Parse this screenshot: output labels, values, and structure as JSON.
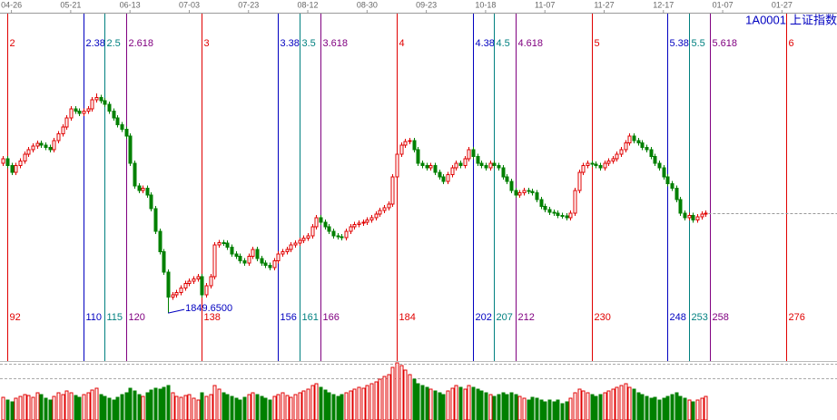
{
  "chart_data": {
    "type": "candlestick",
    "code": "1A0001",
    "name": "上证指数",
    "x": [
      91,
      92,
      93,
      94,
      95,
      96,
      97,
      98,
      99,
      100,
      101,
      102,
      103,
      104,
      105,
      106,
      107,
      108,
      109,
      110,
      111,
      112,
      113,
      114,
      115,
      116,
      117,
      118,
      119,
      120,
      121,
      122,
      123,
      124,
      125,
      126,
      127,
      128,
      129,
      130,
      131,
      132,
      133,
      134,
      135,
      136,
      137,
      138,
      139,
      140,
      141,
      142,
      143,
      144,
      145,
      146,
      147,
      148,
      149,
      150,
      151,
      152,
      153,
      154,
      155,
      156,
      157,
      158,
      159,
      160,
      161,
      162,
      163,
      164,
      165,
      166,
      167,
      168,
      169,
      170,
      171,
      172,
      173,
      174,
      175,
      176,
      177,
      178,
      179,
      180,
      181,
      182,
      183,
      184,
      185,
      186,
      187,
      188,
      189,
      190,
      191,
      192,
      193,
      194,
      195,
      196,
      197,
      198,
      199,
      200,
      201,
      202,
      203,
      204,
      205,
      206,
      207,
      208,
      209,
      210,
      211,
      212,
      213,
      214,
      215,
      216,
      217,
      218,
      219,
      220,
      221,
      222,
      223,
      224,
      225,
      226,
      227,
      228,
      229,
      230,
      231,
      232,
      233,
      234,
      235,
      236,
      237,
      238,
      239,
      240,
      241,
      242,
      243,
      244,
      245,
      246,
      247,
      248,
      249,
      250,
      251,
      252,
      253,
      254,
      255,
      256,
      257
    ],
    "open": [
      2180,
      2190,
      2175,
      2160,
      2175,
      2185,
      2200,
      2210,
      2218,
      2224,
      2220,
      2215,
      2210,
      2230,
      2245,
      2260,
      2280,
      2300,
      2295,
      2290,
      2295,
      2300,
      2320,
      2325,
      2318,
      2310,
      2295,
      2280,
      2265,
      2255,
      2240,
      2180,
      2130,
      2120,
      2125,
      2110,
      2080,
      2030,
      1985,
      1940,
      1885,
      1890,
      1895,
      1905,
      1915,
      1920,
      1925,
      1930,
      1890,
      1910,
      1930,
      2000,
      2005,
      2004,
      1995,
      1980,
      1975,
      1965,
      1960,
      1975,
      1990,
      1970,
      1960,
      1955,
      1950,
      1965,
      1980,
      1985,
      1990,
      2000,
      2004,
      2010,
      2015,
      2020,
      2040,
      2060,
      2050,
      2040,
      2030,
      2020,
      2018,
      2016,
      2030,
      2040,
      2045,
      2048,
      2050,
      2055,
      2060,
      2068,
      2076,
      2082,
      2090,
      2150,
      2200,
      2220,
      2228,
      2230,
      2210,
      2180,
      2175,
      2170,
      2175,
      2160,
      2150,
      2140,
      2155,
      2170,
      2180,
      2175,
      2190,
      2210,
      2195,
      2180,
      2175,
      2170,
      2180,
      2175,
      2170,
      2150,
      2140,
      2120,
      2110,
      2115,
      2120,
      2118,
      2115,
      2100,
      2085,
      2078,
      2072,
      2070,
      2065,
      2064,
      2060,
      2070,
      2120,
      2160,
      2175,
      2180,
      2178,
      2175,
      2170,
      2180,
      2185,
      2190,
      2200,
      2210,
      2225,
      2240,
      2230,
      2225,
      2215,
      2210,
      2195,
      2180,
      2170,
      2150,
      2135,
      2125,
      2100,
      2070,
      2060,
      2065,
      2055,
      2062,
      2068
    ],
    "high": [
      2196,
      2196,
      2181,
      2181,
      2191,
      2206,
      2216,
      2224,
      2230,
      2230,
      2226,
      2221,
      2236,
      2251,
      2266,
      2286,
      2306,
      2306,
      2301,
      2301,
      2306,
      2326,
      2334,
      2331,
      2324,
      2316,
      2301,
      2286,
      2271,
      2261,
      2246,
      2186,
      2136,
      2131,
      2131,
      2116,
      2086,
      2036,
      1991,
      1946,
      1896,
      1901,
      1911,
      1921,
      1926,
      1931,
      1936,
      1936,
      1916,
      1936,
      2006,
      2011,
      2011,
      2010,
      2001,
      1986,
      1981,
      1971,
      1981,
      1996,
      1996,
      1976,
      1966,
      1961,
      1971,
      1986,
      1991,
      1996,
      2006,
      2010,
      2016,
      2021,
      2026,
      2046,
      2066,
      2066,
      2056,
      2046,
      2036,
      2026,
      2024,
      2036,
      2046,
      2051,
      2054,
      2056,
      2061,
      2066,
      2074,
      2082,
      2088,
      2096,
      2156,
      2206,
      2226,
      2234,
      2236,
      2236,
      2216,
      2186,
      2181,
      2181,
      2181,
      2166,
      2156,
      2161,
      2176,
      2186,
      2186,
      2196,
      2216,
      2216,
      2201,
      2186,
      2181,
      2186,
      2186,
      2181,
      2176,
      2156,
      2146,
      2126,
      2121,
      2126,
      2126,
      2124,
      2121,
      2106,
      2091,
      2084,
      2078,
      2076,
      2071,
      2070,
      2076,
      2126,
      2166,
      2181,
      2186,
      2186,
      2184,
      2181,
      2186,
      2191,
      2196,
      2206,
      2216,
      2231,
      2246,
      2246,
      2236,
      2231,
      2221,
      2216,
      2201,
      2186,
      2176,
      2156,
      2141,
      2131,
      2106,
      2076,
      2071,
      2071,
      2068,
      2074,
      2076
    ],
    "low": [
      2174,
      2169,
      2154,
      2154,
      2169,
      2179,
      2194,
      2204,
      2212,
      2214,
      2209,
      2204,
      2204,
      2224,
      2239,
      2254,
      2274,
      2289,
      2284,
      2284,
      2289,
      2294,
      2314,
      2312,
      2304,
      2289,
      2274,
      2259,
      2249,
      2234,
      2174,
      2124,
      2114,
      2114,
      2104,
      2074,
      2024,
      1979,
      1934,
      1849.65,
      1879,
      1884,
      1889,
      1899,
      1909,
      1914,
      1919,
      1884,
      1884,
      1904,
      1924,
      1994,
      1998,
      1989,
      1974,
      1969,
      1959,
      1954,
      1954,
      1969,
      1964,
      1954,
      1949,
      1944,
      1944,
      1959,
      1974,
      1979,
      1984,
      1994,
      1998,
      2004,
      2009,
      2014,
      2034,
      2044,
      2034,
      2024,
      2014,
      2012,
      2010,
      2010,
      2024,
      2034,
      2039,
      2042,
      2044,
      2049,
      2054,
      2062,
      2070,
      2076,
      2084,
      2144,
      2194,
      2214,
      2222,
      2204,
      2174,
      2169,
      2164,
      2164,
      2154,
      2144,
      2134,
      2134,
      2149,
      2164,
      2169,
      2169,
      2184,
      2189,
      2174,
      2169,
      2164,
      2164,
      2169,
      2164,
      2144,
      2134,
      2114,
      2104,
      2104,
      2109,
      2112,
      2109,
      2094,
      2079,
      2072,
      2066,
      2064,
      2059,
      2058,
      2054,
      2054,
      2064,
      2114,
      2154,
      2169,
      2172,
      2169,
      2164,
      2164,
      2174,
      2179,
      2184,
      2194,
      2204,
      2219,
      2224,
      2219,
      2209,
      2204,
      2189,
      2174,
      2164,
      2144,
      2129,
      2119,
      2094,
      2064,
      2054,
      2054,
      2049,
      2049,
      2056,
      2062
    ],
    "close": [
      2190,
      2175,
      2160,
      2175,
      2185,
      2200,
      2210,
      2218,
      2224,
      2220,
      2215,
      2210,
      2230,
      2245,
      2260,
      2280,
      2300,
      2295,
      2290,
      2295,
      2300,
      2320,
      2325,
      2318,
      2310,
      2295,
      2280,
      2265,
      2255,
      2240,
      2180,
      2130,
      2120,
      2125,
      2110,
      2080,
      2030,
      1985,
      1940,
      1885,
      1890,
      1895,
      1905,
      1915,
      1920,
      1925,
      1930,
      1890,
      1910,
      1930,
      2000,
      2005,
      2004,
      1995,
      1980,
      1975,
      1965,
      1960,
      1975,
      1990,
      1970,
      1960,
      1955,
      1950,
      1965,
      1980,
      1985,
      1990,
      2000,
      2004,
      2010,
      2015,
      2020,
      2040,
      2060,
      2050,
      2040,
      2030,
      2020,
      2018,
      2016,
      2030,
      2040,
      2045,
      2048,
      2050,
      2055,
      2060,
      2068,
      2076,
      2082,
      2090,
      2150,
      2200,
      2220,
      2228,
      2230,
      2210,
      2180,
      2175,
      2170,
      2175,
      2160,
      2150,
      2140,
      2155,
      2170,
      2180,
      2175,
      2190,
      2210,
      2195,
      2180,
      2175,
      2170,
      2180,
      2175,
      2170,
      2150,
      2140,
      2120,
      2110,
      2115,
      2120,
      2118,
      2115,
      2100,
      2085,
      2078,
      2072,
      2070,
      2065,
      2064,
      2060,
      2070,
      2120,
      2160,
      2175,
      2180,
      2178,
      2175,
      2170,
      2180,
      2185,
      2190,
      2200,
      2210,
      2225,
      2240,
      2230,
      2225,
      2215,
      2210,
      2195,
      2180,
      2170,
      2150,
      2135,
      2125,
      2100,
      2070,
      2060,
      2065,
      2055,
      2062,
      2068,
      2070
    ],
    "volume": [
      25,
      22,
      20,
      24,
      26,
      28,
      27,
      25,
      30,
      28,
      24,
      22,
      26,
      30,
      28,
      32,
      30,
      27,
      25,
      28,
      30,
      33,
      35,
      28,
      26,
      24,
      22,
      25,
      28,
      30,
      35,
      32,
      28,
      26,
      30,
      33,
      35,
      34,
      36,
      38,
      30,
      26,
      25,
      27,
      28,
      24,
      22,
      30,
      26,
      28,
      38,
      34,
      30,
      28,
      26,
      24,
      22,
      25,
      28,
      30,
      28,
      26,
      24,
      22,
      26,
      28,
      30,
      27,
      25,
      28,
      30,
      32,
      34,
      38,
      40,
      36,
      33,
      30,
      28,
      26,
      28,
      30,
      32,
      34,
      36,
      35,
      38,
      40,
      42,
      45,
      48,
      50,
      58,
      63,
      60,
      55,
      50,
      45,
      40,
      38,
      36,
      34,
      32,
      30,
      28,
      32,
      35,
      38,
      36,
      34,
      38,
      36,
      34,
      32,
      30,
      28,
      26,
      28,
      30,
      28,
      30,
      28,
      26,
      24,
      22,
      25,
      24,
      22,
      20,
      22,
      20,
      22,
      18,
      20,
      24,
      30,
      34,
      32,
      30,
      28,
      26,
      28,
      30,
      32,
      34,
      36,
      38,
      40,
      36,
      34,
      30,
      28,
      26,
      24,
      25,
      22,
      24,
      26,
      28,
      30,
      26,
      24,
      22,
      20,
      22,
      24,
      26
    ],
    "xlim": [
      90.3,
      288
    ],
    "ylim": [
      1744,
      2510
    ],
    "volume_ylim": [
      0,
      63
    ],
    "xticks": [
      {
        "value": 93,
        "label": "04-26"
      },
      {
        "value": 107,
        "label": "05-21"
      },
      {
        "value": 121,
        "label": "06-13"
      },
      {
        "value": 135,
        "label": "07-03"
      },
      {
        "value": 149,
        "label": "07-23"
      },
      {
        "value": 163,
        "label": "08-12"
      },
      {
        "value": 177,
        "label": "08-30"
      },
      {
        "value": 191,
        "label": "09-23"
      },
      {
        "value": 205,
        "label": "10-18"
      },
      {
        "value": 219,
        "label": "11-07"
      },
      {
        "value": 233,
        "label": "11-27"
      },
      {
        "value": 247,
        "label": "12-17"
      },
      {
        "value": 261,
        "label": "01-07"
      },
      {
        "value": 275,
        "label": "01-27"
      }
    ],
    "up_color": "#e00000",
    "down_color": "#008000",
    "fib_lines": [
      {
        "label": "2",
        "bar": 92,
        "color": "#e00000"
      },
      {
        "label": "2.38",
        "bar": 110,
        "color": "#0000c0"
      },
      {
        "label": "2.5",
        "bar": 115,
        "color": "#008080"
      },
      {
        "label": "2.618",
        "bar": 120,
        "color": "#800080"
      },
      {
        "label": "3",
        "bar": 138,
        "color": "#e00000"
      },
      {
        "label": "3.38",
        "bar": 156,
        "color": "#0000c0"
      },
      {
        "label": "3.5",
        "bar": 161,
        "color": "#008080"
      },
      {
        "label": "3.618",
        "bar": 166,
        "color": "#800080"
      },
      {
        "label": "4",
        "bar": 184,
        "color": "#e00000"
      },
      {
        "label": "4.38",
        "bar": 202,
        "color": "#0000c0"
      },
      {
        "label": "4.5",
        "bar": 207,
        "color": "#008080"
      },
      {
        "label": "4.618",
        "bar": 212,
        "color": "#800080"
      },
      {
        "label": "5",
        "bar": 230,
        "color": "#e00000"
      },
      {
        "label": "5.38",
        "bar": 248,
        "color": "#0000c0"
      },
      {
        "label": "5.5",
        "bar": 253,
        "color": "#008080"
      },
      {
        "label": "5.618",
        "bar": 258,
        "color": "#800080"
      },
      {
        "label": "6",
        "bar": 276,
        "color": "#e00000"
      }
    ],
    "annotations": [
      {
        "label": "1849.6500",
        "value": 1849.65,
        "color": "#0000c0"
      }
    ]
  }
}
